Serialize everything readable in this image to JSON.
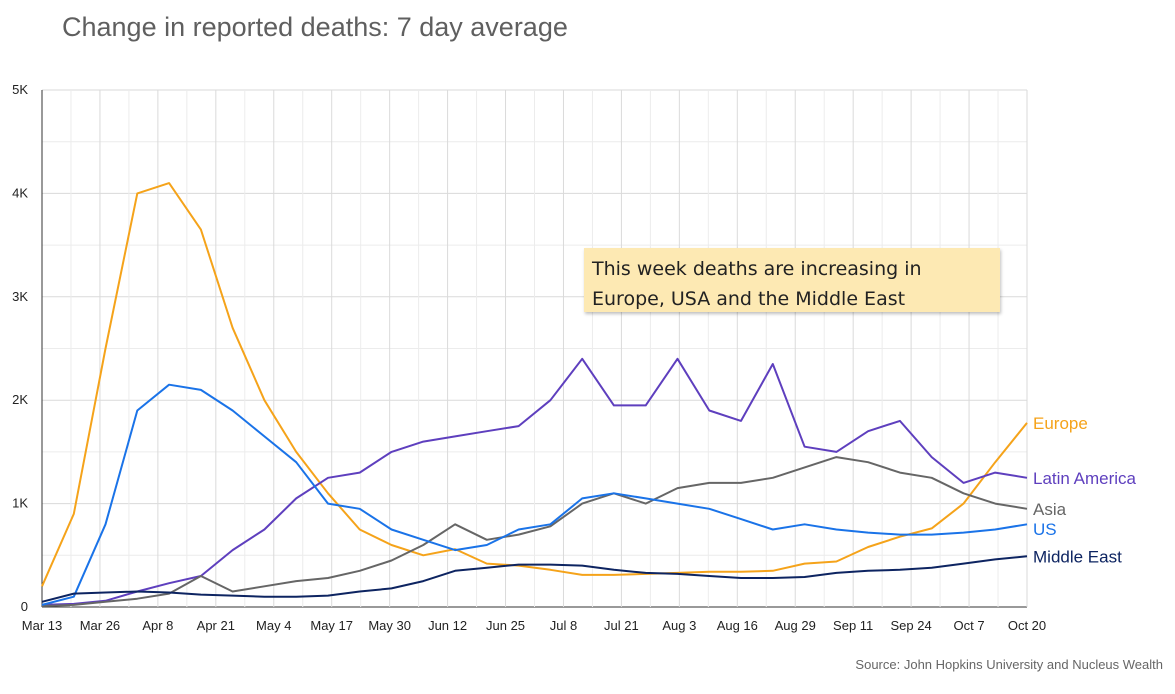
{
  "title": "Change in reported deaths: 7 day average",
  "annotation": "This week deaths are increasing in Europe, USA and the Middle East",
  "source": "Source: John Hopkins University and Nucleus Wealth",
  "chart_data": {
    "type": "line",
    "title": "Change in reported deaths: 7 day average",
    "xlabel": "",
    "ylabel": "",
    "x_start": "Mar 13",
    "x_step_days": 7,
    "x_ticks": [
      "Mar 13",
      "Mar 26",
      "Apr 8",
      "Apr 21",
      "May 4",
      "May 17",
      "May 30",
      "Jun 12",
      "Jun 25",
      "Jul 8",
      "Jul 21",
      "Aug 3",
      "Aug 16",
      "Aug 29",
      "Sep 11",
      "Sep 24",
      "Oct 7",
      "Oct 20"
    ],
    "y_ticks": [
      "0",
      "1K",
      "2K",
      "3K",
      "4K",
      "5K"
    ],
    "ylim": [
      0,
      5000
    ],
    "grid": true,
    "legend": "labels at line ends (right)",
    "series": [
      {
        "name": "Europe",
        "color": "#f5a31a",
        "values": [
          200,
          900,
          2500,
          4000,
          4100,
          3650,
          2700,
          2000,
          1500,
          1100,
          750,
          600,
          500,
          560,
          420,
          400,
          360,
          310,
          310,
          320,
          330,
          340,
          340,
          350,
          420,
          440,
          580,
          680,
          760,
          1000,
          1400,
          1780
        ]
      },
      {
        "name": "Latin America",
        "color": "#5e3fbe",
        "values": [
          20,
          30,
          60,
          150,
          230,
          300,
          550,
          750,
          1050,
          1250,
          1300,
          1500,
          1600,
          1650,
          1700,
          1750,
          2000,
          2400,
          1950,
          1950,
          2400,
          1900,
          1800,
          2350,
          1550,
          1500,
          1700,
          1800,
          1450,
          1200,
          1300,
          1250
        ]
      },
      {
        "name": "Asia",
        "color": "#666666",
        "values": [
          10,
          20,
          50,
          80,
          130,
          300,
          150,
          200,
          250,
          280,
          350,
          450,
          600,
          800,
          650,
          700,
          780,
          1000,
          1100,
          1000,
          1150,
          1200,
          1200,
          1250,
          1350,
          1450,
          1400,
          1300,
          1250,
          1100,
          1000,
          950
        ]
      },
      {
        "name": "US",
        "color": "#1a73e8",
        "values": [
          20,
          100,
          800,
          1900,
          2150,
          2100,
          1900,
          1650,
          1400,
          1000,
          950,
          750,
          650,
          550,
          600,
          750,
          800,
          1050,
          1100,
          1050,
          1000,
          950,
          850,
          750,
          800,
          750,
          720,
          700,
          700,
          720,
          750,
          800
        ]
      },
      {
        "name": "Middle East",
        "color": "#0d2461",
        "values": [
          50,
          130,
          140,
          150,
          140,
          120,
          110,
          100,
          100,
          110,
          150,
          180,
          250,
          350,
          380,
          410,
          410,
          400,
          360,
          330,
          320,
          300,
          280,
          280,
          290,
          330,
          350,
          360,
          380,
          420,
          460,
          490
        ]
      }
    ]
  }
}
